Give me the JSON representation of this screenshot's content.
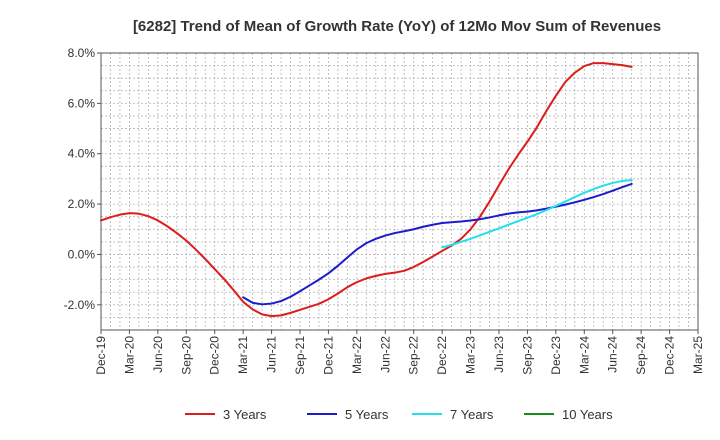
{
  "chart_data": {
    "type": "line",
    "title": "[6282]  Trend of Mean of Growth Rate (YoY) of 12Mo Mov Sum of Revenues",
    "xlabel": "",
    "ylabel": "",
    "ylim": [
      -3.0,
      8.0
    ],
    "y_ticks": [
      -2.0,
      0.0,
      2.0,
      4.0,
      6.0,
      8.0
    ],
    "y_tick_labels": [
      "-2.0%",
      "0.0%",
      "2.0%",
      "4.0%",
      "6.0%",
      "8.0%"
    ],
    "x_tick_labels": [
      "Dec-19",
      "Mar-20",
      "Jun-20",
      "Sep-20",
      "Dec-20",
      "Mar-21",
      "Jun-21",
      "Sep-21",
      "Dec-21",
      "Mar-22",
      "Jun-22",
      "Sep-22",
      "Dec-22",
      "Mar-23",
      "Jun-23",
      "Sep-23",
      "Dec-23",
      "Mar-24",
      "Jun-24",
      "Sep-24",
      "Dec-24",
      "Mar-25"
    ],
    "x_range_months": [
      0,
      63
    ],
    "grid": true,
    "series": [
      {
        "name": "3 Years",
        "color": "#dd1c1c",
        "points": [
          [
            0,
            1.35
          ],
          [
            1,
            1.48
          ],
          [
            2,
            1.58
          ],
          [
            3,
            1.64
          ],
          [
            4,
            1.62
          ],
          [
            5,
            1.52
          ],
          [
            6,
            1.35
          ],
          [
            7,
            1.12
          ],
          [
            8,
            0.85
          ],
          [
            9,
            0.55
          ],
          [
            10,
            0.2
          ],
          [
            11,
            -0.18
          ],
          [
            12,
            -0.58
          ],
          [
            13,
            -0.98
          ],
          [
            14,
            -1.42
          ],
          [
            15,
            -1.88
          ],
          [
            16,
            -2.18
          ],
          [
            17,
            -2.38
          ],
          [
            18,
            -2.45
          ],
          [
            19,
            -2.42
          ],
          [
            20,
            -2.32
          ],
          [
            21,
            -2.2
          ],
          [
            22,
            -2.08
          ],
          [
            23,
            -1.96
          ],
          [
            24,
            -1.78
          ],
          [
            25,
            -1.55
          ],
          [
            26,
            -1.3
          ],
          [
            27,
            -1.1
          ],
          [
            28,
            -0.95
          ],
          [
            29,
            -0.85
          ],
          [
            30,
            -0.77
          ],
          [
            31,
            -0.72
          ],
          [
            32,
            -0.65
          ],
          [
            33,
            -0.5
          ],
          [
            34,
            -0.3
          ],
          [
            35,
            -0.08
          ],
          [
            36,
            0.14
          ],
          [
            37,
            0.35
          ],
          [
            38,
            0.62
          ],
          [
            39,
            1.0
          ],
          [
            40,
            1.5
          ],
          [
            41,
            2.1
          ],
          [
            42,
            2.75
          ],
          [
            43,
            3.38
          ],
          [
            44,
            3.95
          ],
          [
            45,
            4.48
          ],
          [
            46,
            5.05
          ],
          [
            47,
            5.7
          ],
          [
            48,
            6.3
          ],
          [
            49,
            6.85
          ],
          [
            50,
            7.22
          ],
          [
            51,
            7.48
          ],
          [
            52,
            7.6
          ],
          [
            53,
            7.6
          ],
          [
            54,
            7.56
          ],
          [
            55,
            7.52
          ],
          [
            56,
            7.45
          ]
        ]
      },
      {
        "name": "5 Years",
        "color": "#1c1ccc",
        "points": [
          [
            15,
            -1.7
          ],
          [
            16,
            -1.92
          ],
          [
            17,
            -1.98
          ],
          [
            18,
            -1.95
          ],
          [
            19,
            -1.85
          ],
          [
            20,
            -1.68
          ],
          [
            21,
            -1.46
          ],
          [
            22,
            -1.23
          ],
          [
            23,
            -1.0
          ],
          [
            24,
            -0.75
          ],
          [
            25,
            -0.45
          ],
          [
            26,
            -0.12
          ],
          [
            27,
            0.2
          ],
          [
            28,
            0.45
          ],
          [
            29,
            0.62
          ],
          [
            30,
            0.75
          ],
          [
            31,
            0.85
          ],
          [
            32,
            0.92
          ],
          [
            33,
            1.0
          ],
          [
            34,
            1.1
          ],
          [
            35,
            1.18
          ],
          [
            36,
            1.25
          ],
          [
            37,
            1.28
          ],
          [
            38,
            1.31
          ],
          [
            39,
            1.35
          ],
          [
            40,
            1.4
          ],
          [
            41,
            1.47
          ],
          [
            42,
            1.55
          ],
          [
            43,
            1.62
          ],
          [
            44,
            1.67
          ],
          [
            45,
            1.7
          ],
          [
            46,
            1.75
          ],
          [
            47,
            1.82
          ],
          [
            48,
            1.9
          ],
          [
            49,
            1.98
          ],
          [
            50,
            2.07
          ],
          [
            51,
            2.17
          ],
          [
            52,
            2.28
          ],
          [
            53,
            2.4
          ],
          [
            54,
            2.53
          ],
          [
            55,
            2.67
          ],
          [
            56,
            2.8
          ]
        ]
      },
      {
        "name": "7 Years",
        "color": "#22e0ee",
        "points": [
          [
            36,
            0.28
          ],
          [
            37,
            0.38
          ],
          [
            38,
            0.5
          ],
          [
            39,
            0.62
          ],
          [
            40,
            0.76
          ],
          [
            41,
            0.9
          ],
          [
            42,
            1.04
          ],
          [
            43,
            1.18
          ],
          [
            44,
            1.32
          ],
          [
            45,
            1.46
          ],
          [
            46,
            1.6
          ],
          [
            47,
            1.76
          ],
          [
            48,
            1.93
          ],
          [
            49,
            2.1
          ],
          [
            50,
            2.28
          ],
          [
            51,
            2.45
          ],
          [
            52,
            2.6
          ],
          [
            53,
            2.73
          ],
          [
            54,
            2.84
          ],
          [
            55,
            2.92
          ],
          [
            56,
            2.95
          ]
        ]
      },
      {
        "name": "10 Years",
        "color": "#1a8a1a",
        "points": []
      }
    ],
    "legend_position": "bottom"
  }
}
